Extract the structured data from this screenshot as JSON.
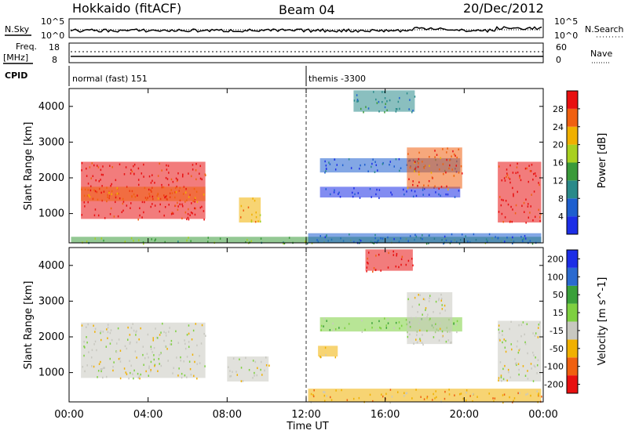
{
  "header": {
    "station": "Hokkaido (fitACF)",
    "beam": "Beam 04",
    "date": "20/Dec/2012"
  },
  "status_panels": {
    "nsky_label": "N.Sky",
    "nsky_ticks": [
      "10^5",
      "10^0"
    ],
    "nsearch_label": "N.Search",
    "nsearch_ticks": [
      "10^5",
      "10^0"
    ],
    "freq_label": "Freq.",
    "freq_unit": "[MHz]",
    "freq_ticks": [
      "18",
      "8"
    ],
    "nave_label": "Nave",
    "nave_ticks": [
      "60",
      "0"
    ],
    "cpid_label": "CPID",
    "cpid_segments": [
      {
        "start_hour": 0,
        "end_hour": 12,
        "label": "normal (fast) 151"
      },
      {
        "start_hour": 12,
        "end_hour": 24,
        "label": "themis -3300"
      }
    ]
  },
  "chart_data": [
    {
      "type": "heatmap",
      "name": "power",
      "ylabel": "Slant Range [km]",
      "y_ticks": [
        "1000",
        "2000",
        "3000",
        "4000"
      ],
      "y_tick_values": [
        1000,
        2000,
        3000,
        4000
      ],
      "ylim": [
        180,
        4500
      ],
      "xlim": [
        0,
        24
      ],
      "colorbar_label": "Power [dB]",
      "colorbar_ticks": [
        "4",
        "8",
        "12",
        "16",
        "20",
        "24",
        "28"
      ],
      "colorbar_colors": [
        "#1c2ee6",
        "#1e5fcf",
        "#2a8a8a",
        "#3a9a3a",
        "#a8d020",
        "#f0b000",
        "#f06010",
        "#e81010"
      ],
      "regions": [
        {
          "x0": 0.6,
          "x1": 6.9,
          "y0": 850,
          "y1": 2450,
          "level": 7
        },
        {
          "x0": 0.6,
          "x1": 6.9,
          "y0": 1350,
          "y1": 1750,
          "level": 6
        },
        {
          "x0": 8.6,
          "x1": 9.7,
          "y0": 750,
          "y1": 1450,
          "level": 5
        },
        {
          "x0": 12.7,
          "x1": 19.8,
          "y0": 2150,
          "y1": 2550,
          "level": 1
        },
        {
          "x0": 12.7,
          "x1": 19.8,
          "y0": 1450,
          "y1": 1750,
          "level": 0
        },
        {
          "x0": 14.4,
          "x1": 17.5,
          "y0": 3850,
          "y1": 4450,
          "level": 2
        },
        {
          "x0": 17.1,
          "x1": 19.9,
          "y0": 1700,
          "y1": 2850,
          "level": 6
        },
        {
          "x0": 21.7,
          "x1": 23.9,
          "y0": 750,
          "y1": 2450,
          "level": 7
        },
        {
          "x0": 0.1,
          "x1": 23.9,
          "y0": 180,
          "y1": 350,
          "level": 3
        },
        {
          "x0": 12.1,
          "x1": 23.9,
          "y0": 180,
          "y1": 450,
          "level": 1
        }
      ]
    },
    {
      "type": "heatmap",
      "name": "velocity",
      "ylabel": "Slant Range [km]",
      "y_ticks": [
        "1000",
        "2000",
        "3000",
        "4000"
      ],
      "y_tick_values": [
        1000,
        2000,
        3000,
        4000
      ],
      "ylim": [
        180,
        4500
      ],
      "xlim": [
        0,
        24
      ],
      "xlabel": "Time UT",
      "x_ticks": [
        "00:00",
        "04:00",
        "08:00",
        "12:00",
        "16:00",
        "20:00",
        "00:00"
      ],
      "x_tick_values": [
        0,
        4,
        8,
        12,
        16,
        20,
        24
      ],
      "colorbar_label": "Velocity [m s^-1]",
      "colorbar_ticks": [
        "200",
        "100",
        "50",
        "15",
        "-15",
        "-50",
        "-100",
        "-200"
      ],
      "colorbar_colors": [
        "#1c2ee6",
        "#2a6ad0",
        "#3aa03a",
        "#7ed040",
        "#c8c8c0",
        "#f0b000",
        "#f06010",
        "#e81010"
      ],
      "regions": [
        {
          "x0": 0.6,
          "x1": 6.9,
          "y0": 850,
          "y1": 2400,
          "level": 4
        },
        {
          "x0": 8.0,
          "x1": 10.1,
          "y0": 750,
          "y1": 1450,
          "level": 4
        },
        {
          "x0": 12.7,
          "x1": 19.9,
          "y0": 2150,
          "y1": 2550,
          "level": 3
        },
        {
          "x0": 15.0,
          "x1": 17.4,
          "y0": 3850,
          "y1": 4450,
          "level": 7
        },
        {
          "x0": 17.1,
          "x1": 19.4,
          "y0": 1800,
          "y1": 3250,
          "level": 4
        },
        {
          "x0": 21.7,
          "x1": 23.9,
          "y0": 750,
          "y1": 2450,
          "level": 4
        },
        {
          "x0": 12.1,
          "x1": 23.9,
          "y0": 180,
          "y1": 550,
          "level": 5
        },
        {
          "x0": 12.6,
          "x1": 13.6,
          "y0": 1450,
          "y1": 1750,
          "level": 5
        }
      ]
    }
  ]
}
